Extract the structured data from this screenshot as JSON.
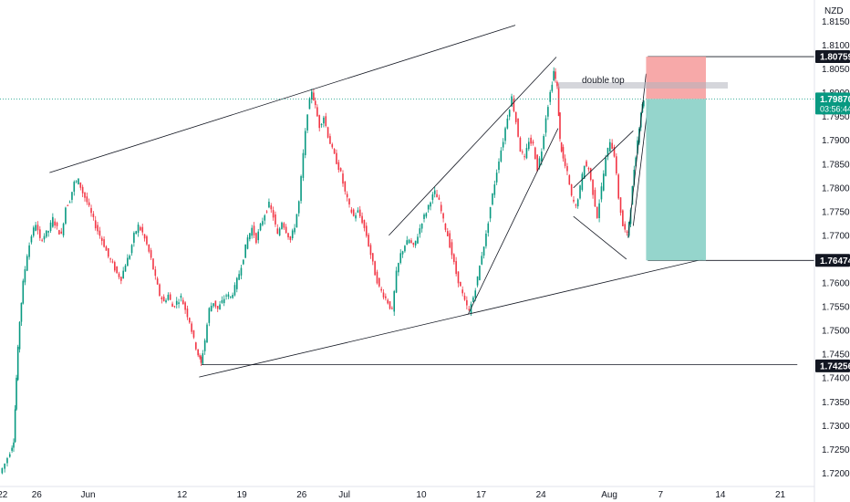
{
  "chart_data": {
    "type": "candlestick",
    "currency": "NZD",
    "y_ticks": [
      1.72,
      1.725,
      1.73,
      1.735,
      1.74,
      1.745,
      1.75,
      1.755,
      1.76,
      1.765,
      1.77,
      1.775,
      1.78,
      1.785,
      1.79,
      1.795,
      1.8,
      1.805,
      1.81,
      1.815
    ],
    "y_tick_labels": [
      "1.72000",
      "1.72500",
      "1.73000",
      "1.73500",
      "1.74000",
      "1.74500",
      "1.75000",
      "1.75500",
      "1.76000",
      "1.76500",
      "1.77000",
      "1.77500",
      "1.78000",
      "1.78500",
      "1.79000",
      "1.79500",
      "1.80000",
      "1.80500",
      "1.81000",
      "1.81500"
    ],
    "ylim": [
      1.7172,
      1.8195
    ],
    "x_tick_labels": [
      "22",
      "26",
      "Jun",
      "12",
      "19",
      "26",
      "Jul",
      "10",
      "17",
      "24",
      "Aug",
      "7",
      "14",
      "21"
    ],
    "x_tick_days": [
      -10,
      -6,
      0,
      11,
      18,
      25,
      30,
      39,
      46,
      53,
      61,
      67,
      74,
      81
    ],
    "xlim_days": [
      -10.3,
      85
    ],
    "price_labels": [
      {
        "value": 1.80759,
        "text": "1.80759",
        "style": "dark"
      },
      {
        "value": 1.7987,
        "text": "1.79870",
        "style": "current",
        "sub": "03:56:44"
      },
      {
        "value": 1.76474,
        "text": "1.76474",
        "style": "dark"
      },
      {
        "value": 1.74256,
        "text": "1.74256",
        "style": "dark"
      }
    ],
    "annotation": "double top",
    "close_path": [
      [
        -10.2,
        1.72
      ],
      [
        -9.6,
        1.722
      ],
      [
        -9.0,
        1.7245
      ],
      [
        -8.6,
        1.727
      ],
      [
        -8.3,
        1.74
      ],
      [
        -7.9,
        1.752
      ],
      [
        -7.5,
        1.76
      ],
      [
        -7.0,
        1.766
      ],
      [
        -6.5,
        1.77
      ],
      [
        -6.0,
        1.7725
      ],
      [
        -5.5,
        1.769
      ],
      [
        -5.0,
        1.77
      ],
      [
        -4.5,
        1.771
      ],
      [
        -4.0,
        1.7735
      ],
      [
        -3.5,
        1.7715
      ],
      [
        -3.0,
        1.77
      ],
      [
        -2.5,
        1.776
      ],
      [
        -2.0,
        1.7775
      ],
      [
        -1.5,
        1.781
      ],
      [
        -1.0,
        1.7815
      ],
      [
        -0.5,
        1.779
      ],
      [
        0.0,
        1.777
      ],
      [
        0.5,
        1.7745
      ],
      [
        1.0,
        1.772
      ],
      [
        1.5,
        1.77
      ],
      [
        2.0,
        1.768
      ],
      [
        2.5,
        1.7655
      ],
      [
        3.0,
        1.764
      ],
      [
        3.5,
        1.762
      ],
      [
        4.0,
        1.761
      ],
      [
        4.5,
        1.764
      ],
      [
        5.0,
        1.766
      ],
      [
        5.5,
        1.77
      ],
      [
        6.0,
        1.772
      ],
      [
        6.5,
        1.7705
      ],
      [
        7.0,
        1.768
      ],
      [
        7.5,
        1.765
      ],
      [
        8.0,
        1.761
      ],
      [
        8.5,
        1.7575
      ],
      [
        9.0,
        1.756
      ],
      [
        9.5,
        1.7575
      ],
      [
        10.0,
        1.755
      ],
      [
        10.5,
        1.756
      ],
      [
        11.0,
        1.757
      ],
      [
        11.5,
        1.7545
      ],
      [
        12.0,
        1.752
      ],
      [
        12.5,
        1.748
      ],
      [
        13.0,
        1.745
      ],
      [
        13.3,
        1.743
      ],
      [
        13.8,
        1.748
      ],
      [
        14.3,
        1.7545
      ],
      [
        14.8,
        1.756
      ],
      [
        15.3,
        1.7545
      ],
      [
        15.8,
        1.756
      ],
      [
        16.3,
        1.7575
      ],
      [
        16.8,
        1.757
      ],
      [
        17.3,
        1.759
      ],
      [
        17.8,
        1.762
      ],
      [
        18.3,
        1.7655
      ],
      [
        18.8,
        1.7695
      ],
      [
        19.3,
        1.7715
      ],
      [
        19.8,
        1.769
      ],
      [
        20.3,
        1.772
      ],
      [
        20.8,
        1.7745
      ],
      [
        21.3,
        1.7765
      ],
      [
        21.8,
        1.774
      ],
      [
        22.3,
        1.77
      ],
      [
        22.8,
        1.773
      ],
      [
        23.3,
        1.771
      ],
      [
        23.8,
        1.769
      ],
      [
        24.3,
        1.772
      ],
      [
        24.8,
        1.777
      ],
      [
        25.3,
        1.787
      ],
      [
        25.8,
        1.796
      ],
      [
        26.3,
        1.8005
      ],
      [
        26.7,
        1.797
      ],
      [
        27.2,
        1.793
      ],
      [
        27.7,
        1.795
      ],
      [
        28.2,
        1.791
      ],
      [
        28.7,
        1.788
      ],
      [
        29.2,
        1.7855
      ],
      [
        29.7,
        1.783
      ],
      [
        30.2,
        1.779
      ],
      [
        30.7,
        1.776
      ],
      [
        31.2,
        1.774
      ],
      [
        31.7,
        1.775
      ],
      [
        32.2,
        1.773
      ],
      [
        32.7,
        1.77
      ],
      [
        33.2,
        1.766
      ],
      [
        33.7,
        1.762
      ],
      [
        34.2,
        1.759
      ],
      [
        34.7,
        1.7575
      ],
      [
        35.2,
        1.756
      ],
      [
        35.7,
        1.754
      ],
      [
        36.2,
        1.762
      ],
      [
        36.7,
        1.766
      ],
      [
        37.2,
        1.768
      ],
      [
        37.7,
        1.769
      ],
      [
        38.2,
        1.7675
      ],
      [
        38.7,
        1.77
      ],
      [
        39.2,
        1.773
      ],
      [
        39.7,
        1.775
      ],
      [
        40.2,
        1.7775
      ],
      [
        40.7,
        1.779
      ],
      [
        41.2,
        1.777
      ],
      [
        41.7,
        1.773
      ],
      [
        42.2,
        1.77
      ],
      [
        42.7,
        1.766
      ],
      [
        43.2,
        1.762
      ],
      [
        43.7,
        1.759
      ],
      [
        44.2,
        1.756
      ],
      [
        44.7,
        1.754
      ],
      [
        45.2,
        1.757
      ],
      [
        45.7,
        1.761
      ],
      [
        46.2,
        1.766
      ],
      [
        46.7,
        1.77
      ],
      [
        47.2,
        1.776
      ],
      [
        47.7,
        1.781
      ],
      [
        48.2,
        1.786
      ],
      [
        48.7,
        1.79
      ],
      [
        49.2,
        1.795
      ],
      [
        49.7,
        1.799
      ],
      [
        50.2,
        1.794
      ],
      [
        50.7,
        1.788
      ],
      [
        51.2,
        1.786
      ],
      [
        51.7,
        1.79
      ],
      [
        52.2,
        1.789
      ],
      [
        52.7,
        1.784
      ],
      [
        53.2,
        1.788
      ],
      [
        53.7,
        1.795
      ],
      [
        54.2,
        1.8
      ],
      [
        54.6,
        1.8045
      ],
      [
        55.0,
        1.801
      ],
      [
        55.3,
        1.79
      ],
      [
        55.7,
        1.786
      ],
      [
        56.2,
        1.783
      ],
      [
        56.7,
        1.778
      ],
      [
        57.2,
        1.776
      ],
      [
        57.7,
        1.78
      ],
      [
        58.2,
        1.785
      ],
      [
        58.7,
        1.784
      ],
      [
        59.2,
        1.779
      ],
      [
        59.7,
        1.774
      ],
      [
        60.2,
        1.78
      ],
      [
        60.7,
        1.786
      ],
      [
        61.2,
        1.79
      ],
      [
        61.7,
        1.787
      ],
      [
        62.2,
        1.778
      ],
      [
        62.7,
        1.772
      ],
      [
        63.2,
        1.77
      ],
      [
        63.6,
        1.776
      ],
      [
        64.0,
        1.784
      ],
      [
        64.4,
        1.79
      ],
      [
        64.8,
        1.796
      ],
      [
        65.1,
        1.7987
      ]
    ]
  }
}
